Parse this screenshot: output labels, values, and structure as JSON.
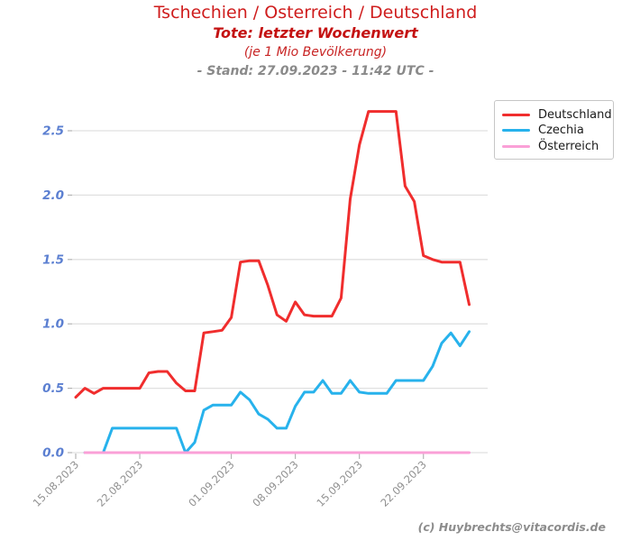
{
  "header": {
    "title": "Tschechien / Osterreich / Deutschland",
    "subtitle": "Tote: letzter Wochenwert",
    "subtitle2": "(je 1 Mio Bevölkerung)",
    "stand": "- Stand: 27.09.2023 - 11:42 UTC -"
  },
  "footer": {
    "credit": "(c) Huybrechts@vitacordis.de"
  },
  "colors": {
    "deutschland": "#f02d2d",
    "czechia": "#27b2ec",
    "oesterreich": "#faa0d7",
    "grid": "#e0e0e0",
    "tick": "#b4b4b4",
    "y_label": "#5b7fd1",
    "x_label": "#909090"
  },
  "legend": {
    "items": [
      {
        "label": "Deutschland",
        "color": "#f02d2d"
      },
      {
        "label": "Czechia",
        "color": "#27b2ec"
      },
      {
        "label": "Österreich",
        "color": "#faa0d7"
      }
    ]
  },
  "chart_data": {
    "type": "line",
    "title": "Tschechien / Osterreich / Deutschland",
    "subtitle": "Tote: letzter Wochenwert (je 1 Mio Bevölkerung)",
    "stand": "27.09.2023 - 11:42 UTC",
    "ylabel": "",
    "xlabel": "",
    "ylim": [
      0,
      2.75
    ],
    "grid": true,
    "legend_position": "upper right",
    "y_ticks": [
      0.0,
      0.5,
      1.0,
      1.5,
      2.0,
      2.5
    ],
    "y_tick_labels": [
      "0.0",
      "0.5",
      "1.0",
      "1.5",
      "2.0",
      "2.5"
    ],
    "x_tick_labels": [
      "15.08.2023",
      "22.08.2023",
      "01.09.2023",
      "08.09.2023",
      "15.09.2023",
      "22.09.2023"
    ],
    "x_tick_days": [
      0,
      7,
      17,
      24,
      31,
      38
    ],
    "x_unit": "days since 15.08.2023, last day 27.09.2023",
    "series": [
      {
        "name": "Deutschland",
        "color": "#f02d2d",
        "start_day": 0,
        "values": [
          0.43,
          0.5,
          0.46,
          0.5,
          0.5,
          0.5,
          0.5,
          0.5,
          0.62,
          0.63,
          0.63,
          0.54,
          0.48,
          0.48,
          0.93,
          0.94,
          0.95,
          1.05,
          1.48,
          1.49,
          1.49,
          1.3,
          1.07,
          1.02,
          1.17,
          1.07,
          1.06,
          1.06,
          1.06,
          1.2,
          1.97,
          2.39,
          2.65,
          2.65,
          2.65,
          2.65,
          2.07,
          1.95,
          1.53,
          1.5,
          1.48,
          1.48,
          1.48,
          1.15
        ]
      },
      {
        "name": "Czechia",
        "color": "#27b2ec",
        "start_day": 1,
        "values": [
          0.0,
          0.0,
          0.0,
          0.19,
          0.19,
          0.19,
          0.19,
          0.19,
          0.19,
          0.19,
          0.19,
          0.0,
          0.08,
          0.33,
          0.37,
          0.37,
          0.37,
          0.47,
          0.41,
          0.3,
          0.26,
          0.19,
          0.19,
          0.36,
          0.47,
          0.47,
          0.56,
          0.46,
          0.46,
          0.56,
          0.47,
          0.46,
          0.46,
          0.46,
          0.56,
          0.56,
          0.56,
          0.56,
          0.67,
          0.85,
          0.93,
          0.83,
          0.94
        ]
      },
      {
        "name": "Österreich",
        "color": "#faa0d7",
        "start_day": 1,
        "values": [
          0.0,
          0.0,
          0.0,
          0.0,
          0.0,
          0.0,
          0.0,
          0.0,
          0.0,
          0.0,
          0.0,
          0.0,
          0.0,
          0.0,
          0.0,
          0.0,
          0.0,
          0.0,
          0.0,
          0.0,
          0.0,
          0.0,
          0.0,
          0.0,
          0.0,
          0.0,
          0.0,
          0.0,
          0.0,
          0.0,
          0.0,
          0.0,
          0.0,
          0.0,
          0.0,
          0.0,
          0.0,
          0.0,
          0.0,
          0.0,
          0.0,
          0.0,
          0.0
        ]
      }
    ]
  }
}
